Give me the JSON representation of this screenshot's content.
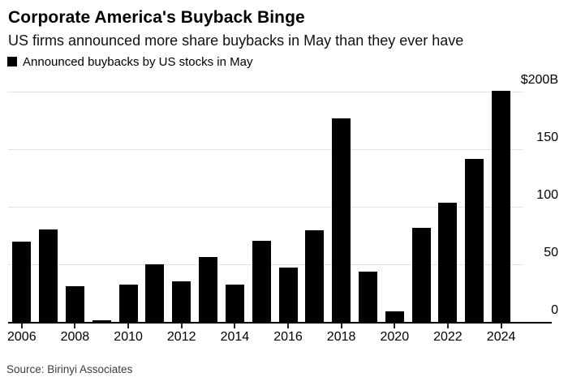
{
  "header": {
    "title": "Corporate America's Buyback Binge",
    "subtitle": "US firms announced more share buybacks in May than they ever have"
  },
  "legend": {
    "label": "Announced buybacks by US stocks in May",
    "swatch_color": "#000000"
  },
  "footer": {
    "source": "Source: Birinyi Associates"
  },
  "colors": {
    "bar": "#000000",
    "gridline": "#e3e3e3",
    "axis": "#000000",
    "background": "#ffffff",
    "source_text": "#3d3d3d"
  },
  "chart_data": {
    "type": "bar",
    "title": "Corporate America's Buyback Binge",
    "subtitle": "US firms announced more share buybacks in May than they ever have",
    "series_name": "Announced buybacks by US stocks in May",
    "categories": [
      "2006",
      "2007",
      "2008",
      "2009",
      "2010",
      "2011",
      "2012",
      "2013",
      "2014",
      "2015",
      "2016",
      "2017",
      "2018",
      "2019",
      "2020",
      "2021",
      "2022",
      "2023",
      "2024"
    ],
    "values": [
      70,
      81,
      32,
      2,
      33,
      51,
      36,
      57,
      33,
      71,
      48,
      80,
      177,
      44,
      10,
      82,
      104,
      142,
      201
    ],
    "unit": "billion USD",
    "xlabel": "",
    "ylabel": "",
    "ylim": [
      0,
      200
    ],
    "grid": true,
    "legend_position": "top-left",
    "y_axis_side": "right",
    "y_ticks": [
      {
        "value": 200,
        "label": "$200B"
      },
      {
        "value": 150,
        "label": "150"
      },
      {
        "value": 100,
        "label": "100"
      },
      {
        "value": 50,
        "label": "50"
      },
      {
        "value": 0,
        "label": "0"
      }
    ],
    "x_tick_labels": [
      "2006",
      "2008",
      "2010",
      "2012",
      "2014",
      "2016",
      "2018",
      "2020",
      "2022",
      "2024"
    ]
  }
}
